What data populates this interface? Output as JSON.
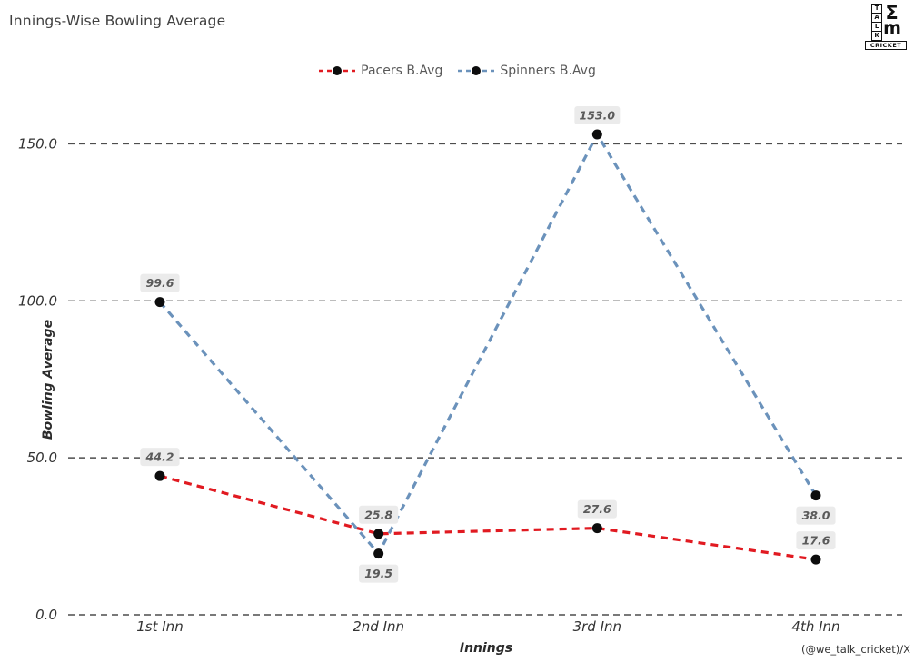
{
  "header": {
    "title": "Innings-Wise Bowling Average"
  },
  "logo": {
    "letters": [
      "T",
      "A",
      "L",
      "K"
    ],
    "sigma": "Σ",
    "em": "m",
    "bottom": "CRICKET"
  },
  "footer": {
    "credit": "(@we_talk_cricket)/X"
  },
  "chart_data": {
    "type": "line",
    "title": "Innings-Wise Bowling Average",
    "xlabel": "Innings",
    "ylabel": "Bowling Average",
    "categories": [
      "1st Inn",
      "2nd Inn",
      "3rd Inn",
      "4th Inn"
    ],
    "series": [
      {
        "name": "Pacers B.Avg",
        "color": "#e11a21",
        "values": [
          44.2,
          25.8,
          27.6,
          17.6
        ],
        "label_position": [
          "above",
          "above",
          "above",
          "above"
        ]
      },
      {
        "name": "Spinners B.Avg",
        "color": "#6b92bb",
        "values": [
          99.6,
          19.5,
          153.0,
          38.0
        ],
        "label_position": [
          "above",
          "below",
          "above",
          "below"
        ]
      }
    ],
    "yticks": [
      0,
      50,
      100,
      150
    ],
    "ytick_labels": [
      "0.0",
      "50.0",
      "100.0",
      "150.0"
    ],
    "ylim": [
      0,
      164
    ],
    "grid": "horizontal-dashed",
    "legend_position": "top-center",
    "line_style": "dashed",
    "marker_color": "#0d0d0d",
    "label_box_color": "#ebebeb",
    "label_text_color": "#5a5a5a",
    "grid_color": "#4d4d4d",
    "axis_text_color": "#333333"
  }
}
